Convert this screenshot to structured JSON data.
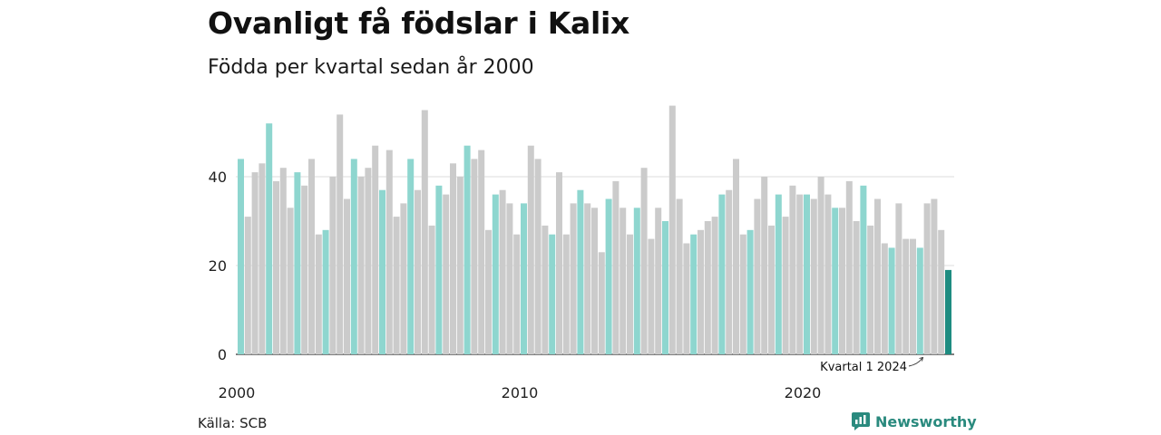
{
  "chart_data": {
    "type": "bar",
    "title": "Ovanligt få födslar i Kalix",
    "subtitle": "Födda per kvartal sedan år 2000",
    "source": "Källa: SCB",
    "brand": "Newsworthy",
    "annotation": "Kvartal 1 2024",
    "yticks": [
      0,
      20,
      40
    ],
    "ylim": [
      0,
      60
    ],
    "xtick_labels": [
      "2000",
      "2010",
      "2020"
    ],
    "x_start_year": 2000,
    "colors": {
      "q1": "#8ed6cf",
      "other": "#cbcbcb",
      "latest": "#1e8c81"
    },
    "values": [
      44,
      31,
      41,
      43,
      52,
      39,
      42,
      33,
      41,
      38,
      44,
      27,
      28,
      40,
      54,
      35,
      44,
      40,
      42,
      47,
      37,
      46,
      31,
      34,
      44,
      37,
      55,
      29,
      38,
      36,
      43,
      40,
      47,
      44,
      46,
      28,
      36,
      37,
      34,
      27,
      34,
      47,
      44,
      29,
      27,
      41,
      27,
      34,
      37,
      34,
      33,
      23,
      35,
      39,
      33,
      27,
      33,
      42,
      26,
      33,
      30,
      56,
      35,
      25,
      27,
      28,
      30,
      31,
      36,
      37,
      44,
      27,
      28,
      35,
      40,
      29,
      36,
      31,
      38,
      36,
      36,
      35,
      40,
      36,
      33,
      33,
      39,
      30,
      38,
      29,
      35,
      25,
      24,
      34,
      26,
      26,
      24,
      34,
      35,
      28,
      19
    ]
  }
}
